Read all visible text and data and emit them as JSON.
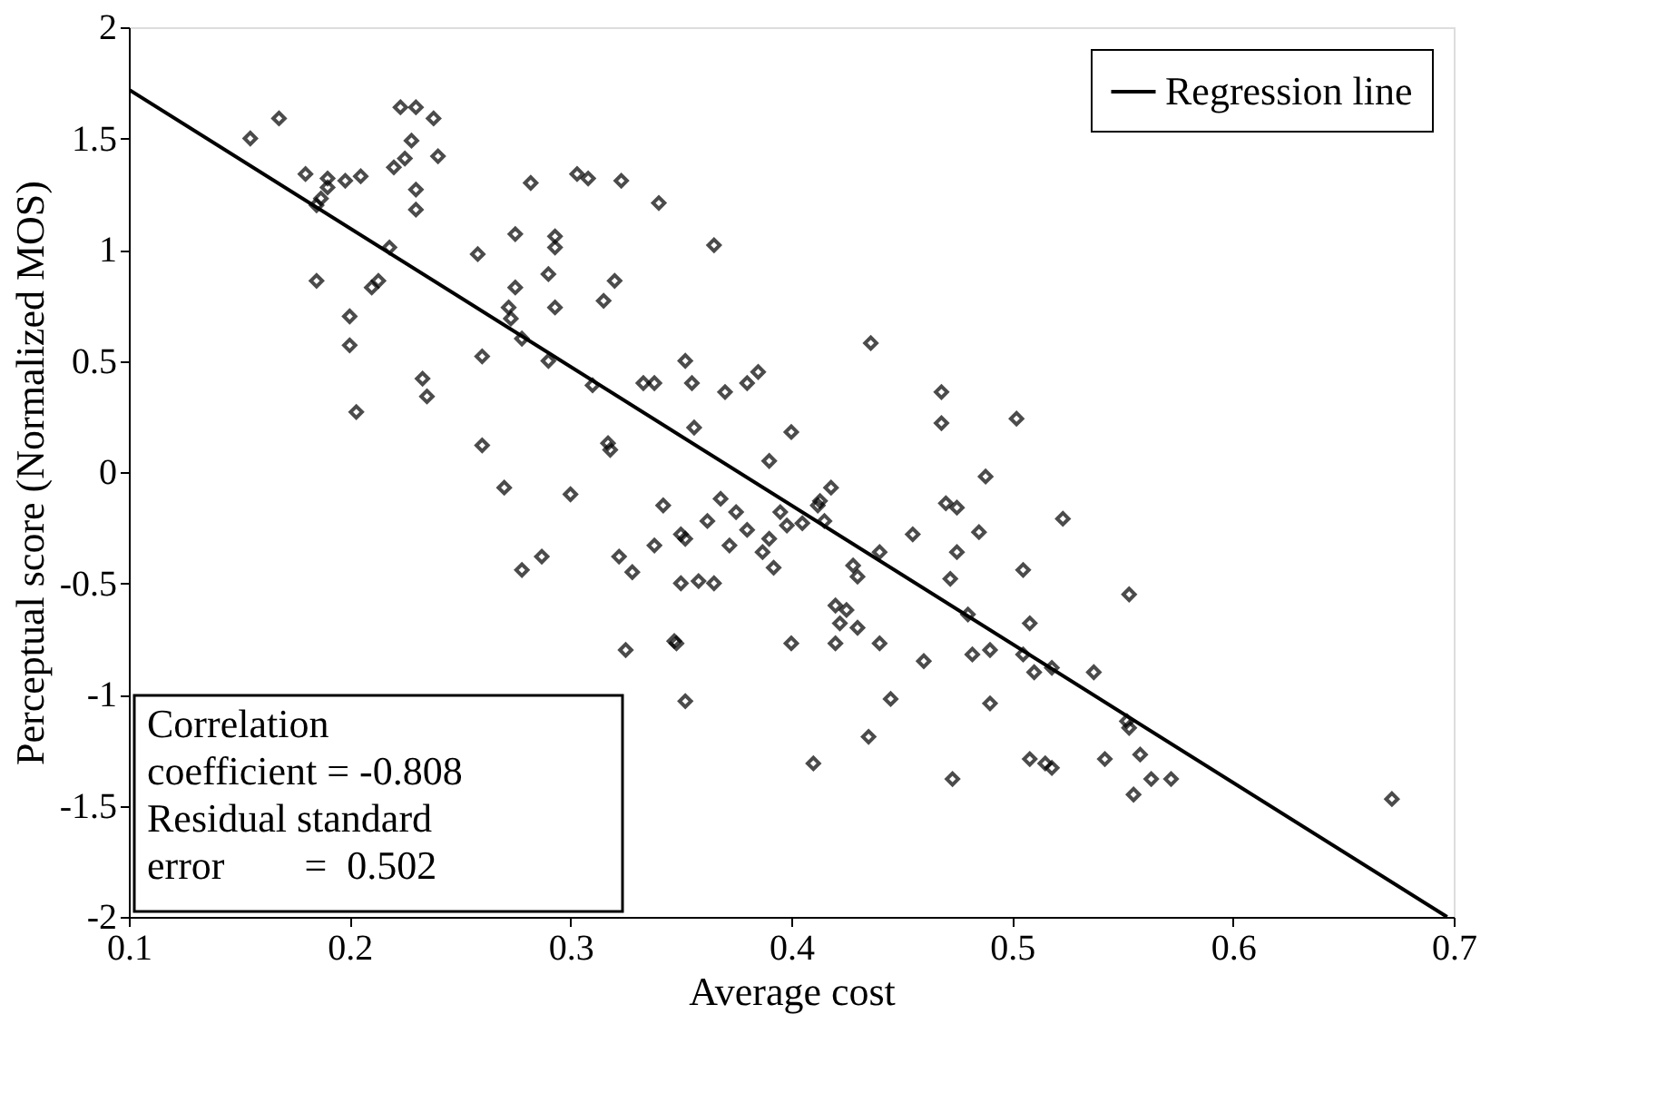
{
  "chart_data": {
    "type": "scatter",
    "xlabel": "Average cost",
    "ylabel": "Perceptual score (Normalized MOS)",
    "xlim": [
      0.1,
      0.7
    ],
    "xticks": [
      0.1,
      0.2,
      0.3,
      0.4,
      0.5,
      0.6,
      0.7
    ],
    "ylim": [
      -2,
      2
    ],
    "yticks": [
      -2,
      -1.5,
      -1,
      -0.5,
      0,
      0.5,
      1,
      1.5,
      2
    ],
    "grid": false,
    "legend": "top right",
    "marker": "diamond",
    "annotations": [
      "Correlation\n coefficient = -0.808",
      "Residual standard\n error        =  0.502"
    ],
    "series": [
      {
        "color": "#000000",
        "x": [
          0.155,
          0.168,
          0.18,
          0.185,
          0.187,
          0.19,
          0.19,
          0.185,
          0.198,
          0.205,
          0.2,
          0.2,
          0.203,
          0.21,
          0.213,
          0.218,
          0.22,
          0.223,
          0.225,
          0.23,
          0.228,
          0.23,
          0.23,
          0.233,
          0.235,
          0.238,
          0.24,
          0.258,
          0.26,
          0.26,
          0.27,
          0.272,
          0.273,
          0.275,
          0.275,
          0.278,
          0.278,
          0.282,
          0.287,
          0.29,
          0.29,
          0.293,
          0.293,
          0.293,
          0.3,
          0.303,
          0.308,
          0.31,
          0.315,
          0.317,
          0.318,
          0.32,
          0.323,
          0.322,
          0.325,
          0.328,
          0.333,
          0.338,
          0.338,
          0.34,
          0.342,
          0.347,
          0.348,
          0.35,
          0.35,
          0.352,
          0.352,
          0.352,
          0.355,
          0.356,
          0.358,
          0.362,
          0.365,
          0.365,
          0.368,
          0.37,
          0.372,
          0.375,
          0.38,
          0.38,
          0.385,
          0.387,
          0.39,
          0.392,
          0.39,
          0.395,
          0.398,
          0.4,
          0.4,
          0.405,
          0.41,
          0.412,
          0.413,
          0.415,
          0.418,
          0.42,
          0.42,
          0.422,
          0.425,
          0.428,
          0.43,
          0.43,
          0.435,
          0.436,
          0.44,
          0.44,
          0.445,
          0.455,
          0.46,
          0.468,
          0.468,
          0.47,
          0.472,
          0.473,
          0.475,
          0.475,
          0.48,
          0.482,
          0.485,
          0.488,
          0.49,
          0.49,
          0.502,
          0.505,
          0.505,
          0.508,
          0.508,
          0.51,
          0.515,
          0.518,
          0.518,
          0.523,
          0.537,
          0.542,
          0.553,
          0.552,
          0.553,
          0.555,
          0.558,
          0.563,
          0.572,
          0.672
        ],
        "values": [
          1.5,
          1.59,
          1.34,
          1.2,
          1.23,
          1.28,
          1.32,
          0.86,
          1.31,
          1.33,
          0.7,
          0.57,
          0.27,
          0.83,
          0.86,
          1.01,
          1.37,
          1.64,
          1.41,
          1.64,
          1.49,
          1.27,
          1.18,
          0.42,
          0.34,
          1.59,
          1.42,
          0.98,
          0.52,
          0.12,
          -0.07,
          0.74,
          0.69,
          0.83,
          1.07,
          0.6,
          -0.44,
          1.3,
          -0.38,
          0.5,
          0.89,
          1.06,
          1.01,
          0.74,
          -0.1,
          1.34,
          1.32,
          0.39,
          0.77,
          0.13,
          0.1,
          0.86,
          1.31,
          -0.38,
          -0.8,
          -0.45,
          0.4,
          0.4,
          -0.33,
          1.21,
          -0.15,
          -0.76,
          -0.77,
          -0.5,
          -0.28,
          0.5,
          -0.3,
          -1.03,
          0.4,
          0.2,
          -0.49,
          -0.22,
          1.02,
          -0.5,
          -0.12,
          0.36,
          -0.33,
          -0.18,
          -0.26,
          0.4,
          0.45,
          -0.36,
          -0.3,
          -0.43,
          0.05,
          -0.18,
          -0.24,
          0.18,
          -0.77,
          -0.23,
          -1.31,
          -0.15,
          -0.13,
          -0.22,
          -0.07,
          -0.6,
          -0.77,
          -0.68,
          -0.62,
          -0.42,
          -0.47,
          -0.7,
          -1.19,
          0.58,
          -0.36,
          -0.77,
          -1.02,
          -0.28,
          -0.85,
          0.36,
          0.22,
          -0.14,
          -0.48,
          -1.38,
          -0.16,
          -0.36,
          -0.64,
          -0.82,
          -0.27,
          -0.02,
          -0.8,
          -1.04,
          0.24,
          -0.82,
          -0.44,
          -0.68,
          -1.29,
          -0.9,
          -1.31,
          -1.33,
          -0.88,
          -0.21,
          -0.9,
          -1.29,
          -0.55,
          -1.12,
          -1.15,
          -1.45,
          -1.27,
          -1.38,
          -1.38,
          -1.47
        ]
      },
      {
        "type": "line",
        "name": "Regression line",
        "color": "#000000",
        "line_style": "solid",
        "marker": "none",
        "x": [
          0.1,
          0.697
        ],
        "values": [
          1.72,
          -2
        ]
      }
    ]
  }
}
